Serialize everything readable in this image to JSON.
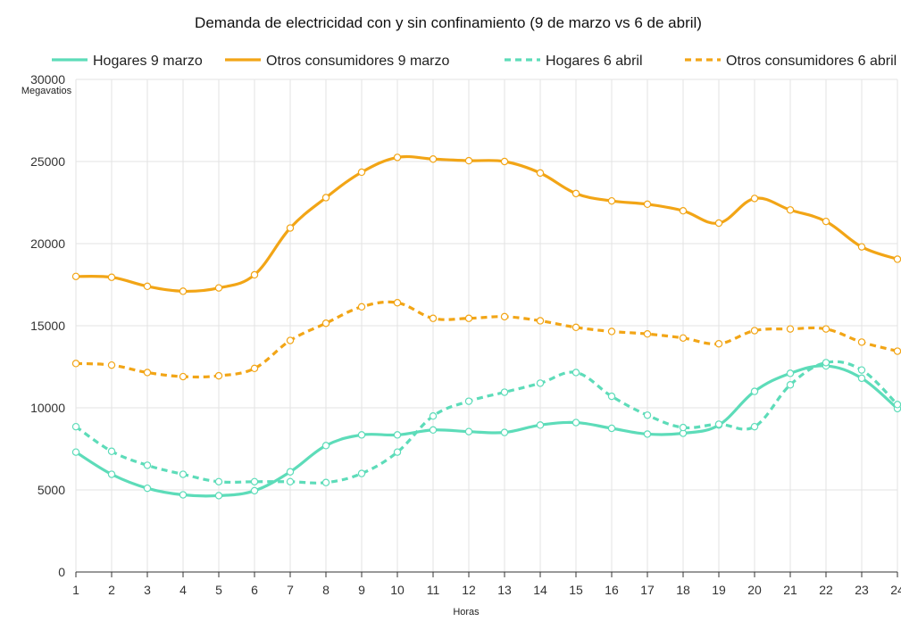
{
  "chart_data": {
    "type": "line",
    "title": "Demanda de electricidad con y sin confinamiento (9 de marzo vs 6 de abril)",
    "xlabel": "Horas",
    "ylabel": "Megavatios",
    "x": [
      1,
      2,
      3,
      4,
      5,
      6,
      7,
      8,
      9,
      10,
      11,
      12,
      13,
      14,
      15,
      16,
      17,
      18,
      19,
      20,
      21,
      22,
      23,
      24
    ],
    "ylim": [
      0,
      30000
    ],
    "yticks": [
      0,
      5000,
      10000,
      15000,
      20000,
      25000,
      30000
    ],
    "grid": true,
    "legend_position": "top",
    "series": [
      {
        "name": "Hogares 9 marzo",
        "color": "#5ddcb9",
        "style": "solid",
        "values": [
          7300,
          5950,
          5100,
          4700,
          4650,
          4950,
          6100,
          7700,
          8350,
          8350,
          8650,
          8550,
          8500,
          8950,
          9100,
          8750,
          8400,
          8450,
          8950,
          11000,
          12100,
          12550,
          11800,
          9950
        ]
      },
      {
        "name": "Otros consumidores 9 marzo",
        "color": "#f2a516",
        "style": "solid",
        "values": [
          18000,
          17950,
          17400,
          17100,
          17300,
          18100,
          20950,
          22800,
          24350,
          25250,
          25150,
          25050,
          25000,
          24300,
          23050,
          22600,
          22400,
          22000,
          21250,
          22750,
          22050,
          21350,
          19800,
          19050
        ]
      },
      {
        "name": "Hogares 6 abril",
        "color": "#5ddcb9",
        "style": "dashed",
        "values": [
          8850,
          7350,
          6500,
          5950,
          5500,
          5500,
          5500,
          5450,
          6000,
          7300,
          9500,
          10400,
          10950,
          11500,
          12150,
          10700,
          9550,
          8800,
          9000,
          8850,
          11400,
          12750,
          12300,
          10200
        ]
      },
      {
        "name": "Otros consumidores 6 abril",
        "color": "#f2a516",
        "style": "dashed",
        "values": [
          12700,
          12600,
          12150,
          11900,
          11950,
          12400,
          14100,
          15150,
          16150,
          16400,
          15450,
          15450,
          15550,
          15300,
          14900,
          14650,
          14500,
          14250,
          13900,
          14700,
          14800,
          14800,
          14000,
          13450
        ]
      }
    ]
  }
}
